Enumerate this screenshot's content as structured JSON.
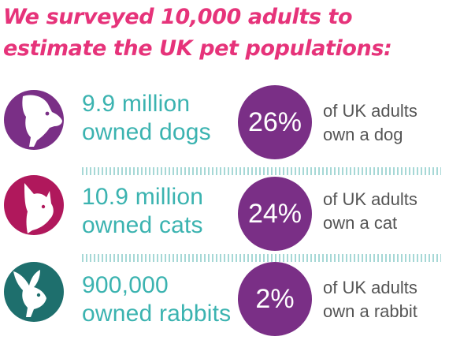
{
  "title": "We surveyed 10,000 adults to estimate the UK pet populations:",
  "colors": {
    "title": "#e6337a",
    "teal_text": "#3bb3b0",
    "circle": "#7a2f86",
    "dog_icon": "#7a2f86",
    "cat_icon": "#b0185c",
    "rabbit_icon": "#1e6f6d"
  },
  "rows": [
    {
      "icon": "dog-icon",
      "count_line1": "9.9 million",
      "count_line2": "owned dogs",
      "percent": "26%",
      "desc_line1": "of UK adults",
      "desc_line2": "own a dog"
    },
    {
      "icon": "cat-icon",
      "count_line1": "10.9 million",
      "count_line2": "owned cats",
      "percent": "24%",
      "desc_line1": "of UK adults",
      "desc_line2": "own a cat"
    },
    {
      "icon": "rabbit-icon",
      "count_line1": "900,000",
      "count_line2": "owned rabbits",
      "percent": "2%",
      "desc_line1": "of UK adults",
      "desc_line2": "own a rabbit"
    }
  ]
}
